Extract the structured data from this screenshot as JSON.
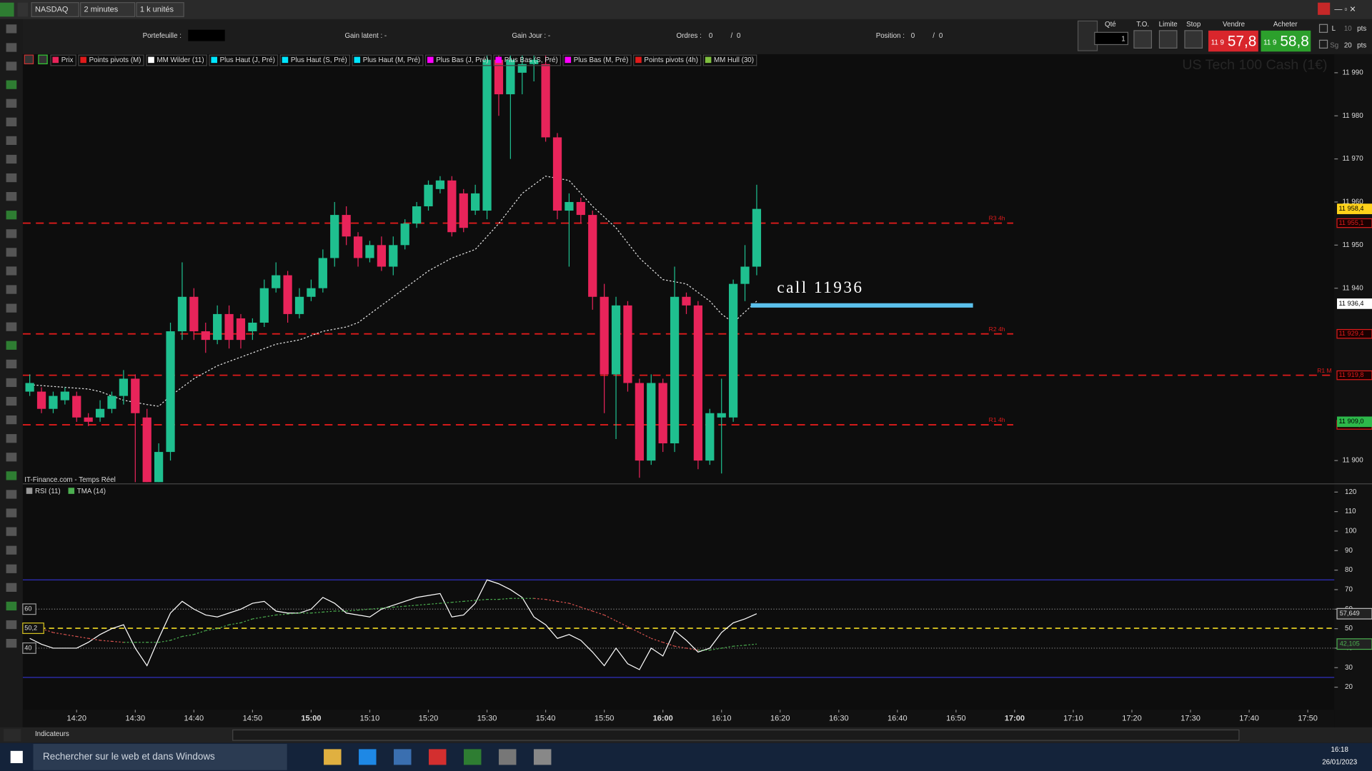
{
  "toolbar": {
    "instrument": "NASDAQ",
    "timeframe": "2 minutes",
    "size": "1 k unités"
  },
  "account": {
    "portfolio": "Portefeuille :",
    "gain_latent": "Gain latent : -",
    "gain_jour": "Gain Jour : -",
    "orders_label": "Ordres :",
    "orders": 0,
    "orders_pending": 0,
    "position_label": "Position :",
    "position": 0,
    "position_pending": 0
  },
  "trade_panel": {
    "qty_label": "Qté",
    "qty": 1,
    "to": "T.O.",
    "limit": "Limite",
    "stop": "Stop",
    "sell_label": "Vendre",
    "sell_prefix": "11 9",
    "sell_price": "57,8",
    "buy_label": "Acheter",
    "buy_prefix": "11 9",
    "buy_price": "58,8",
    "pts_1": 10,
    "pts_2": 20,
    "pts_unit": "pts",
    "l": "L",
    "sg": "Sg"
  },
  "chart_data": [
    {
      "type": "candlestick",
      "watermark": "US Tech 100 Cash (1€)",
      "source": "IT-Finance.com - Temps Réel",
      "legend": [
        {
          "name": "Prix",
          "color": "#e8245a"
        },
        {
          "name": "Points pivots (M)",
          "color": "#e01b1b"
        },
        {
          "name": "MM Wilder (11)",
          "color": "#ffffff"
        },
        {
          "name": "Plus Haut (J, Pré)",
          "color": "#00e5ff"
        },
        {
          "name": "Plus Haut (S, Pré)",
          "color": "#00e5ff"
        },
        {
          "name": "Plus Haut (M, Pré)",
          "color": "#00e5ff"
        },
        {
          "name": "Plus Bas (J, Pré)",
          "color": "#ff00ff"
        },
        {
          "name": "Plus Bas (S, Pré)",
          "color": "#ff00ff"
        },
        {
          "name": "Plus Bas (M, Pré)",
          "color": "#ff00ff"
        },
        {
          "name": "Points pivots (4h)",
          "color": "#e01b1b"
        },
        {
          "name": "MM Hull (30)",
          "color": "#7fbf3f"
        }
      ],
      "up_color": "#1fbf8f",
      "down_color": "#e8245a",
      "candles": [
        {
          "o": 11916,
          "h": 11920,
          "l": 11915,
          "c": 11918
        },
        {
          "o": 11916,
          "h": 11917,
          "l": 11911,
          "c": 11912
        },
        {
          "o": 11912,
          "h": 11916,
          "l": 11911,
          "c": 11915
        },
        {
          "o": 11914,
          "h": 11917,
          "l": 11913,
          "c": 11916
        },
        {
          "o": 11915,
          "h": 11916,
          "l": 11909,
          "c": 11910
        },
        {
          "o": 11910,
          "h": 11911,
          "l": 11908,
          "c": 11909
        },
        {
          "o": 11910,
          "h": 11914,
          "l": 11909,
          "c": 11912
        },
        {
          "o": 11912,
          "h": 11916,
          "l": 11911,
          "c": 11915
        },
        {
          "o": 11915,
          "h": 11921,
          "l": 11913,
          "c": 11919
        },
        {
          "o": 11919,
          "h": 11920,
          "l": 11895,
          "c": 11911
        },
        {
          "o": 11910,
          "h": 11912,
          "l": 11895,
          "c": 11895
        },
        {
          "o": 11895,
          "h": 11904,
          "l": 11895,
          "c": 11902
        },
        {
          "o": 11902,
          "h": 11932,
          "l": 11900,
          "c": 11930
        },
        {
          "o": 11930,
          "h": 11946,
          "l": 11928,
          "c": 11938
        },
        {
          "o": 11938,
          "h": 11940,
          "l": 11928,
          "c": 11930
        },
        {
          "o": 11930,
          "h": 11932,
          "l": 11925,
          "c": 11928
        },
        {
          "o": 11928,
          "h": 11936,
          "l": 11927,
          "c": 11934
        },
        {
          "o": 11934,
          "h": 11936,
          "l": 11926,
          "c": 11928
        },
        {
          "o": 11933,
          "h": 11934,
          "l": 11926,
          "c": 11928
        },
        {
          "o": 11930,
          "h": 11933,
          "l": 11928,
          "c": 11932
        },
        {
          "o": 11932,
          "h": 11942,
          "l": 11931,
          "c": 11940
        },
        {
          "o": 11940,
          "h": 11946,
          "l": 11939,
          "c": 11943
        },
        {
          "o": 11943,
          "h": 11944,
          "l": 11932,
          "c": 11934
        },
        {
          "o": 11934,
          "h": 11940,
          "l": 11933,
          "c": 11938
        },
        {
          "o": 11938,
          "h": 11942,
          "l": 11937,
          "c": 11940
        },
        {
          "o": 11940,
          "h": 11949,
          "l": 11939,
          "c": 11947
        },
        {
          "o": 11947,
          "h": 11960,
          "l": 11945,
          "c": 11957
        },
        {
          "o": 11957,
          "h": 11959,
          "l": 11950,
          "c": 11952
        },
        {
          "o": 11952,
          "h": 11953,
          "l": 11945,
          "c": 11947
        },
        {
          "o": 11947,
          "h": 11951,
          "l": 11946,
          "c": 11950
        },
        {
          "o": 11950,
          "h": 11952,
          "l": 11944,
          "c": 11945
        },
        {
          "o": 11945,
          "h": 11952,
          "l": 11943,
          "c": 11950
        },
        {
          "o": 11950,
          "h": 11956,
          "l": 11949,
          "c": 11955
        },
        {
          "o": 11955,
          "h": 11960,
          "l": 11954,
          "c": 11959
        },
        {
          "o": 11959,
          "h": 11965,
          "l": 11958,
          "c": 11964
        },
        {
          "o": 11963,
          "h": 11966,
          "l": 11962,
          "c": 11965
        },
        {
          "o": 11965,
          "h": 11966,
          "l": 11952,
          "c": 11953
        },
        {
          "o": 11962,
          "h": 11963,
          "l": 11953,
          "c": 11954
        },
        {
          "o": 11958,
          "h": 11964,
          "l": 11957,
          "c": 11962
        },
        {
          "o": 11958,
          "h": 11994,
          "l": 11956,
          "c": 11993
        },
        {
          "o": 11993,
          "h": 11994,
          "l": 11980,
          "c": 11985
        },
        {
          "o": 11985,
          "h": 11994,
          "l": 11970,
          "c": 11993
        },
        {
          "o": 11990,
          "h": 11994,
          "l": 11985,
          "c": 11992
        },
        {
          "o": 11992,
          "h": 11994,
          "l": 11988,
          "c": 11993
        },
        {
          "o": 11992,
          "h": 11994,
          "l": 11974,
          "c": 11975
        },
        {
          "o": 11975,
          "h": 11976,
          "l": 11956,
          "c": 11958
        },
        {
          "o": 11958,
          "h": 11962,
          "l": 11945,
          "c": 11960
        },
        {
          "o": 11960,
          "h": 11961,
          "l": 11955,
          "c": 11957
        },
        {
          "o": 11957,
          "h": 11958,
          "l": 11935,
          "c": 11938
        },
        {
          "o": 11938,
          "h": 11941,
          "l": 11911,
          "c": 11920
        },
        {
          "o": 11920,
          "h": 11938,
          "l": 11905,
          "c": 11936
        },
        {
          "o": 11936,
          "h": 11937,
          "l": 11916,
          "c": 11918
        },
        {
          "o": 11918,
          "h": 11919,
          "l": 11896,
          "c": 11900
        },
        {
          "o": 11900,
          "h": 11920,
          "l": 11899,
          "c": 11918
        },
        {
          "o": 11918,
          "h": 11919,
          "l": 11902,
          "c": 11904
        },
        {
          "o": 11904,
          "h": 11945,
          "l": 11902,
          "c": 11938
        },
        {
          "o": 11938,
          "h": 11939,
          "l": 11934,
          "c": 11936
        },
        {
          "o": 11936,
          "h": 11937,
          "l": 11898,
          "c": 11900
        },
        {
          "o": 11900,
          "h": 11912,
          "l": 11899,
          "c": 11911
        },
        {
          "o": 11910,
          "h": 11919,
          "l": 11897,
          "c": 11911
        },
        {
          "o": 11910,
          "h": 11942,
          "l": 11909,
          "c": 11941
        },
        {
          "o": 11941,
          "h": 11950,
          "l": 11937,
          "c": 11945
        },
        {
          "o": 11945,
          "h": 11964,
          "l": 11943,
          "c": 11958.4
        }
      ],
      "ma": {
        "color": "#e6e6e6",
        "values": [
          11917.6,
          11917.4,
          11917.2,
          11917,
          11916.8,
          11916.6,
          11916,
          11915,
          11914,
          11913.5,
          11913,
          11912.6,
          11915,
          11917,
          11919,
          11920.5,
          11922,
          11923,
          11924,
          11925,
          11926,
          11927,
          11927.5,
          11928,
          11929,
          11930,
          11930.5,
          11931,
          11932,
          11934,
          11936,
          11938,
          11940,
          11942,
          11944,
          11945.5,
          11947,
          11948,
          11949,
          11952,
          11955,
          11958.5,
          11962,
          11964,
          11966,
          11965.5,
          11965,
          11962,
          11959,
          11956.5,
          11954,
          11950.5,
          11947,
          11944.5,
          11942,
          11941.5,
          11941,
          11939,
          11937,
          11934,
          11932,
          11934.5,
          11937
        ]
      },
      "levels_color": "#e01b1b",
      "levels": [
        {
          "name": "R3 4h",
          "value": 11955.1,
          "label": "11 955,1"
        },
        {
          "name": "R2 4h",
          "value": 11929.4,
          "label": "11 929,4"
        },
        {
          "name": "R1 M",
          "value": 11919.8,
          "label": "11 919,8"
        },
        {
          "name": "R1 4h",
          "value": 11908.3,
          "label": "11 908,3"
        }
      ],
      "price_tags": [
        {
          "value": 11958.4,
          "label": "11 958,4",
          "color": "#ffd21a"
        },
        {
          "value": 11936.4,
          "label": "11 936,4",
          "color": "#ffffff"
        },
        {
          "value": 11909.0,
          "label": "11 909,0",
          "color": "#2db84a"
        }
      ],
      "annotation": {
        "text": "call 11936",
        "value": 11936,
        "color": "#5bc0eb"
      },
      "ylim": [
        11894.7,
        11994.3
      ],
      "yticks": [
        {
          "value": 11990,
          "label": "11 990"
        },
        {
          "value": 11980,
          "label": "11 980"
        },
        {
          "value": 11970,
          "label": "11 970"
        },
        {
          "value": 11960,
          "label": "11 960"
        },
        {
          "value": 11950,
          "label": "11 950"
        },
        {
          "value": 11940,
          "label": "11 940"
        },
        {
          "value": 11900,
          "label": "11 900"
        }
      ]
    },
    {
      "type": "line",
      "series": [
        {
          "name": "RSI (11)",
          "color": "#ffffff",
          "values": [
            45,
            42,
            40,
            40,
            40,
            43,
            47,
            50,
            52,
            40,
            31,
            45,
            58,
            64,
            60,
            57,
            56,
            58,
            60,
            63,
            64,
            59,
            58,
            58,
            60,
            66,
            63,
            58,
            57,
            56,
            60,
            62,
            64,
            66,
            67,
            68,
            56,
            57,
            63,
            75,
            73,
            70,
            66,
            56,
            52,
            45,
            47,
            44,
            38,
            31,
            40,
            32,
            29,
            40,
            36,
            49,
            44,
            38,
            40,
            48,
            53,
            55,
            57.649
          ]
        },
        {
          "name": "TMA (14)",
          "color": "#4caf50",
          "down_color": "#d9534f",
          "values": [
            52,
            50,
            48,
            47,
            46,
            45,
            44,
            43.5,
            43,
            43,
            43,
            43,
            44,
            46,
            47,
            49,
            50,
            52,
            53,
            55,
            56,
            57,
            57.5,
            58,
            58,
            58.5,
            59,
            59,
            59.5,
            60,
            60.5,
            61,
            61.5,
            62,
            62.5,
            63,
            63.5,
            64,
            64.5,
            65,
            65,
            65.5,
            65.5,
            65.5,
            65,
            64,
            63,
            61,
            59,
            57,
            54,
            51,
            48,
            45,
            43,
            41,
            40,
            39,
            39,
            40,
            41,
            41.5,
            42.105
          ]
        }
      ],
      "bands": [
        75,
        25
      ],
      "levels": [
        {
          "value": 60,
          "label": "60"
        },
        {
          "value": 50.2,
          "label": "50,2"
        },
        {
          "value": 40,
          "label": "40"
        }
      ],
      "last_tags": [
        {
          "value": 57.649,
          "label": "57,649"
        },
        {
          "value": 42.105,
          "label": "42,105"
        }
      ],
      "ylim": [
        8.4,
        124
      ],
      "yticks": [
        120,
        110,
        100,
        90,
        80,
        70,
        60,
        50,
        40,
        30,
        20
      ],
      "x_labels": [
        "14:20",
        "14:30",
        "14:40",
        "14:50",
        "15:00",
        "15:10",
        "15:20",
        "15:30",
        "15:40",
        "15:50",
        "16:00",
        "16:10",
        "16:20",
        "16:30",
        "16:40",
        "16:50",
        "17:00",
        "17:10",
        "17:20",
        "17:30",
        "17:40",
        "17:50"
      ]
    }
  ],
  "footer": {
    "indicators": "Indicateurs"
  },
  "taskbar": {
    "search": "Rechercher sur le web et dans Windows",
    "time": "16:18",
    "date": "26/01/2023"
  }
}
